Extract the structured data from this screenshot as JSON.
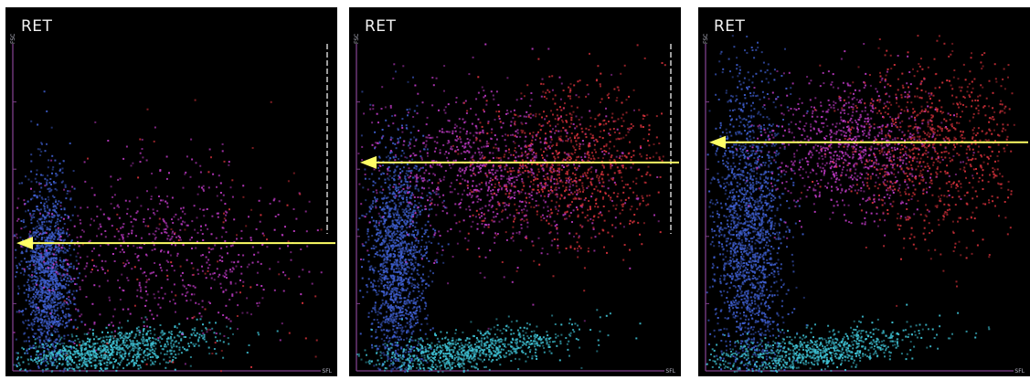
{
  "colors": {
    "background": "#000000",
    "axis": "#7d3f8a",
    "arrow": "#ffff66",
    "scale_ticks": "#cfcfcf",
    "population_blue": "#3f5fd0",
    "population_cyan": "#3fc3d6",
    "population_magenta": "#c03ac6",
    "population_red": "#d8323c"
  },
  "chart_data": [
    {
      "type": "scatter",
      "title": "RET",
      "xlabel": "SFL",
      "ylabel": "FSC",
      "xlim": [
        0,
        100
      ],
      "ylim": [
        0,
        100
      ],
      "arrow_level": 38,
      "series": [
        {
          "color": "population_blue",
          "x": 11,
          "y": 28,
          "sx": 4,
          "sy": 15,
          "n": 1500
        },
        {
          "color": "population_cyan",
          "x": 30,
          "y": 6,
          "sx": 16,
          "sy": 3,
          "n": 1000
        },
        {
          "color": "population_magenta",
          "x": 48,
          "y": 36,
          "sx": 24,
          "sy": 13,
          "n": 700
        },
        {
          "color": "population_red",
          "x": 65,
          "y": 30,
          "sx": 30,
          "sy": 22,
          "n": 120
        }
      ]
    },
    {
      "type": "scatter",
      "title": "RET",
      "xlabel": "SFL",
      "ylabel": "FSC",
      "xlim": [
        0,
        100
      ],
      "ylim": [
        0,
        100
      ],
      "arrow_level": 62,
      "series": [
        {
          "color": "population_blue",
          "x": 13,
          "y": 32,
          "sx": 5,
          "sy": 18,
          "n": 1600
        },
        {
          "color": "population_cyan",
          "x": 35,
          "y": 6,
          "sx": 18,
          "sy": 3,
          "n": 900
        },
        {
          "color": "population_magenta",
          "x": 42,
          "y": 60,
          "sx": 20,
          "sy": 12,
          "n": 1000
        },
        {
          "color": "population_red",
          "x": 70,
          "y": 62,
          "sx": 16,
          "sy": 12,
          "n": 900
        }
      ]
    },
    {
      "type": "scatter",
      "title": "RET",
      "xlabel": "SFL",
      "ylabel": "FSC",
      "xlim": [
        0,
        100
      ],
      "ylim": [
        0,
        100
      ],
      "arrow_level": 68,
      "series": [
        {
          "color": "population_blue",
          "x": 14,
          "y": 40,
          "sx": 6,
          "sy": 24,
          "n": 1900
        },
        {
          "color": "population_cyan",
          "x": 34,
          "y": 6,
          "sx": 18,
          "sy": 3,
          "n": 900
        },
        {
          "color": "population_magenta",
          "x": 48,
          "y": 66,
          "sx": 14,
          "sy": 10,
          "n": 900
        },
        {
          "color": "population_red",
          "x": 75,
          "y": 66,
          "sx": 15,
          "sy": 14,
          "n": 900
        }
      ]
    }
  ]
}
